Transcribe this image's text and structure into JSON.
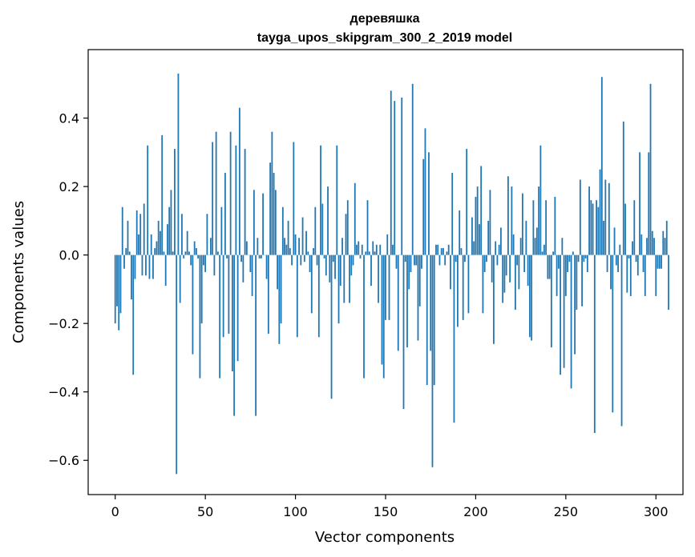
{
  "chart_data": {
    "type": "bar",
    "title": "деревяшка",
    "subtitle": "tayga_upos_skipgram_300_2_2019 model",
    "xlabel": "Vector components",
    "ylabel": "Components values",
    "xlim": [
      -15,
      315
    ],
    "ylim": [
      -0.7,
      0.6
    ],
    "xticks": [
      0,
      50,
      100,
      150,
      200,
      250,
      300
    ],
    "yticks": [
      -0.6,
      -0.4,
      -0.2,
      0.0,
      0.2,
      0.4
    ],
    "ytick_labels": [
      "−0.6",
      "−0.4",
      "−0.2",
      "0.0",
      "0.2",
      "0.4"
    ],
    "bar_color": "#1f77b4",
    "grid": false,
    "legend": "none",
    "values": [
      -0.2,
      -0.15,
      -0.22,
      -0.17,
      0.14,
      -0.04,
      0.02,
      0.1,
      0.01,
      -0.13,
      -0.35,
      -0.07,
      0.13,
      0.06,
      0.12,
      -0.06,
      0.15,
      -0.06,
      0.32,
      -0.07,
      0.06,
      -0.07,
      0.02,
      0.04,
      0.1,
      0.07,
      0.35,
      0.01,
      -0.09,
      0.09,
      0.14,
      0.19,
      0.01,
      0.31,
      -0.64,
      0.53,
      -0.14,
      0.12,
      -0.01,
      0.01,
      0.07,
      0.01,
      -0.03,
      -0.29,
      0.04,
      0.02,
      -0.01,
      -0.36,
      -0.2,
      -0.03,
      -0.05,
      0.12,
      0.0,
      0.05,
      0.33,
      -0.06,
      0.36,
      0.01,
      -0.36,
      0.14,
      -0.24,
      0.24,
      -0.01,
      -0.23,
      0.36,
      -0.34,
      -0.47,
      0.32,
      -0.31,
      0.43,
      -0.02,
      -0.08,
      0.31,
      0.04,
      0.0,
      -0.05,
      -0.12,
      0.19,
      -0.47,
      0.05,
      -0.01,
      -0.01,
      0.18,
      0.0,
      -0.07,
      -0.23,
      0.27,
      0.36,
      0.24,
      0.19,
      -0.1,
      -0.26,
      -0.2,
      0.14,
      0.05,
      0.03,
      0.1,
      0.02,
      -0.03,
      0.33,
      0.06,
      -0.24,
      0.05,
      -0.03,
      0.11,
      -0.02,
      0.07,
      0.01,
      -0.05,
      -0.17,
      0.02,
      0.14,
      -0.03,
      -0.24,
      0.32,
      0.15,
      -0.01,
      -0.06,
      0.2,
      -0.08,
      -0.42,
      -0.02,
      -0.07,
      0.32,
      -0.2,
      -0.09,
      0.05,
      -0.14,
      0.12,
      0.16,
      -0.14,
      -0.06,
      -0.03,
      0.21,
      0.03,
      0.04,
      -0.01,
      0.03,
      -0.36,
      0.01,
      0.16,
      0.01,
      -0.09,
      0.04,
      0.01,
      0.03,
      -0.14,
      0.03,
      -0.32,
      -0.36,
      -0.19,
      0.06,
      -0.19,
      0.48,
      0.03,
      0.45,
      -0.04,
      -0.28,
      0.0,
      0.46,
      -0.45,
      -0.02,
      -0.27,
      -0.1,
      -0.05,
      0.5,
      -0.03,
      -0.03,
      -0.25,
      -0.15,
      -0.04,
      0.28,
      0.37,
      -0.38,
      0.3,
      -0.28,
      -0.62,
      -0.38,
      0.03,
      0.03,
      -0.03,
      0.02,
      0.02,
      -0.03,
      0.01,
      0.03,
      -0.1,
      0.24,
      -0.49,
      -0.02,
      -0.21,
      0.13,
      0.02,
      -0.19,
      -0.02,
      0.31,
      -0.17,
      0.0,
      0.11,
      0.04,
      0.17,
      0.2,
      0.09,
      0.26,
      -0.17,
      -0.05,
      -0.02,
      0.1,
      0.19,
      -0.08,
      -0.26,
      0.04,
      -0.03,
      0.03,
      0.08,
      -0.14,
      -0.11,
      -0.06,
      0.23,
      -0.08,
      0.2,
      0.06,
      -0.16,
      -0.03,
      -0.1,
      0.05,
      0.18,
      -0.05,
      0.1,
      -0.09,
      -0.24,
      -0.25,
      0.16,
      0.05,
      0.08,
      0.2,
      0.32,
      0.01,
      0.03,
      0.16,
      -0.07,
      -0.07,
      -0.27,
      0.01,
      0.17,
      -0.12,
      -0.04,
      -0.35,
      0.05,
      -0.33,
      -0.12,
      -0.05,
      -0.02,
      -0.39,
      0.01,
      -0.29,
      -0.16,
      -0.02,
      0.22,
      -0.15,
      -0.02,
      -0.01,
      -0.05,
      0.2,
      0.16,
      0.15,
      -0.52,
      0.16,
      0.14,
      0.25,
      0.52,
      0.1,
      0.22,
      -0.05,
      0.21,
      -0.1,
      -0.46,
      0.08,
      -0.03,
      -0.05,
      0.03,
      -0.5,
      0.39,
      0.15,
      -0.11,
      -0.01,
      -0.12,
      0.04,
      0.16,
      -0.02,
      -0.06,
      0.3,
      0.06,
      -0.05,
      -0.12,
      0.05,
      0.3,
      0.5,
      0.07,
      0.05,
      -0.12,
      -0.04,
      -0.04,
      -0.04,
      0.07,
      0.05,
      0.1,
      -0.16
    ]
  }
}
